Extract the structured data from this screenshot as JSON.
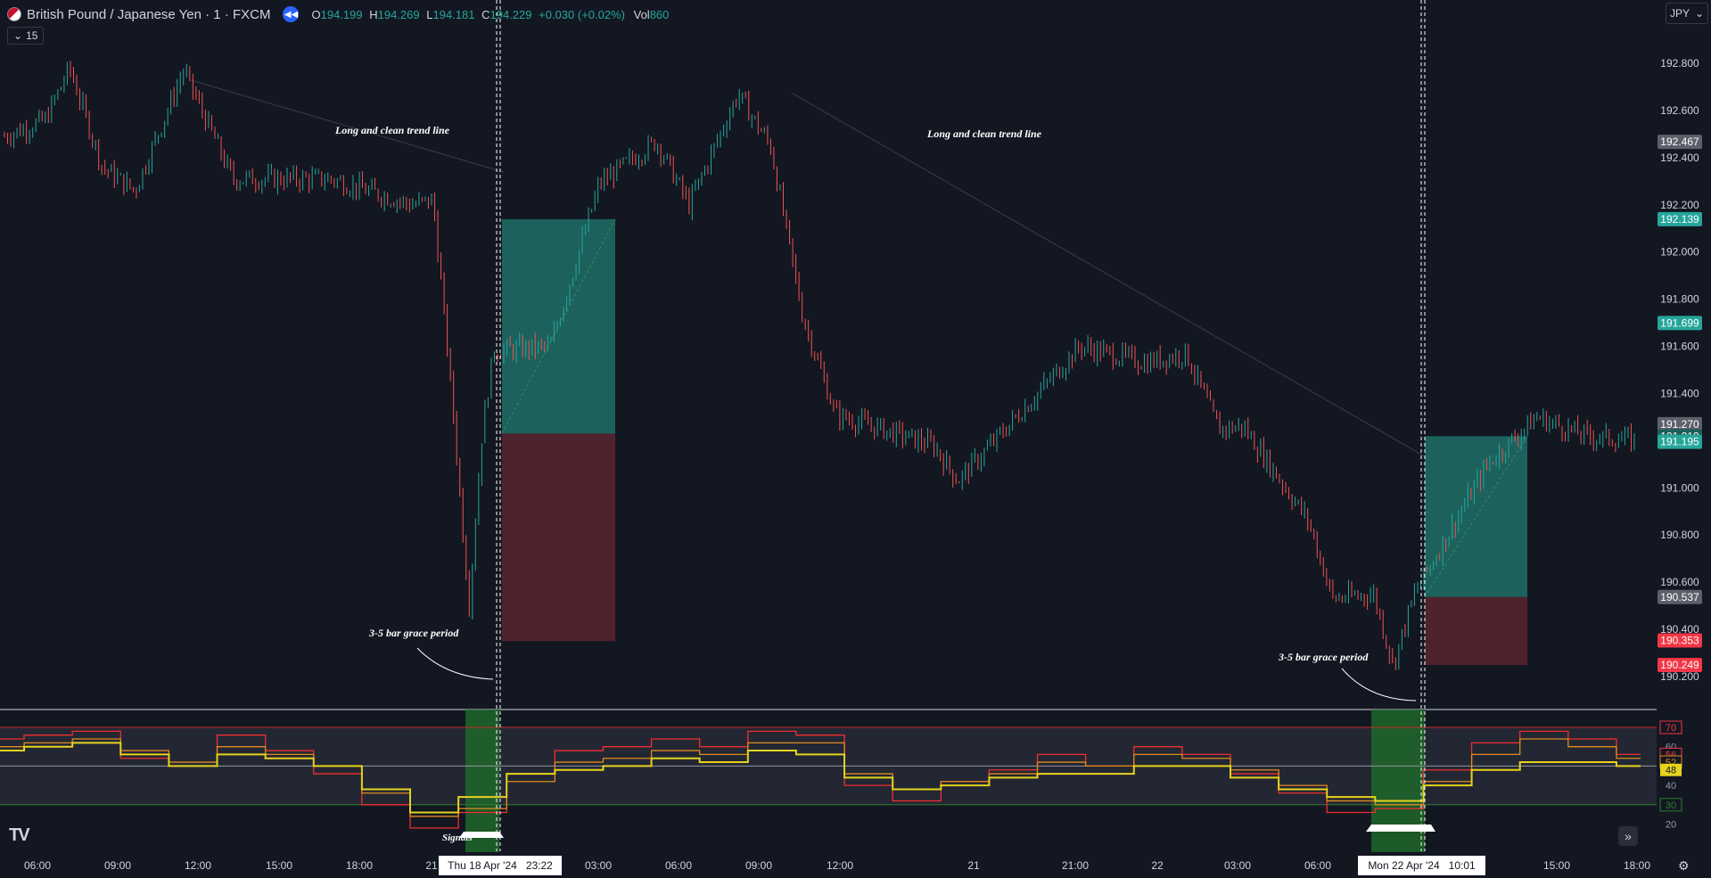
{
  "header": {
    "title": "British Pound / Japanese Yen · 1 · FXCM",
    "open_label": "O",
    "open": "194.199",
    "high_label": "H",
    "high": "194.269",
    "low_label": "L",
    "low": "194.181",
    "close_label": "C",
    "close": "194.229",
    "change": "+0.030 (+0.02%)",
    "vol_label": "Vol",
    "vol": "860",
    "timeframe": "15",
    "currency": "JPY"
  },
  "icons": {
    "flag": "gbp-jpy-flag-icon",
    "replay": "replay-rewind-icon",
    "chevron": "chevron-down-icon",
    "logo": "tradingview-logo-icon",
    "scroll": "scroll-to-realtime-icon",
    "settings": "settings-icon"
  },
  "colors": {
    "background": "#131722",
    "bull": "#26a69a",
    "bear": "#ef5350",
    "tp_zone": "#1e6e66",
    "sl_zone": "#5b2630",
    "rsi_fast": "#ef2f2f",
    "rsi_mid": "#e08a1e",
    "rsi_slow": "#e6d31d"
  },
  "annotations": {
    "trend1": "Long and clean trend line",
    "trend2": "Long and clean trend line",
    "grace1": "3-5 bar grace period",
    "grace2": "3-5 bar grace period",
    "signals": "Signals"
  },
  "price_axis": {
    "ticks": [
      "192.800",
      "192.600",
      "192.400",
      "192.200",
      "192.000",
      "191.800",
      "191.600",
      "191.400",
      "191.200",
      "191.000",
      "190.800",
      "190.600",
      "190.400",
      "190.200"
    ],
    "tags": [
      {
        "value": "192.467",
        "type": "gray"
      },
      {
        "value": "192.139",
        "type": "green"
      },
      {
        "value": "191.699",
        "type": "green"
      },
      {
        "value": "191.270",
        "type": "gray"
      },
      {
        "value": "191.219",
        "type": "dark"
      },
      {
        "value": "191.195",
        "type": "green"
      },
      {
        "value": "190.537",
        "type": "gray"
      },
      {
        "value": "190.353",
        "type": "red"
      },
      {
        "value": "190.249",
        "type": "red"
      }
    ]
  },
  "indicator_axis": {
    "ticks": [
      "60",
      "50",
      "40",
      "20"
    ],
    "tags": [
      {
        "value": "70",
        "type": "red-outline"
      },
      {
        "value": "56",
        "type": "red-outline"
      },
      {
        "value": "52",
        "type": "orange-outline"
      },
      {
        "value": "48",
        "type": "yellow"
      },
      {
        "value": "30",
        "type": "green-outline"
      }
    ]
  },
  "time_axis": {
    "labels": [
      "06:00",
      "09:00",
      "12:00",
      "15:00",
      "18:00",
      "21",
      "03:00",
      "06:00",
      "09:00",
      "12:00",
      "21",
      "21:00",
      "22",
      "03:00",
      "06:00",
      "0",
      "15:00",
      "18:00"
    ],
    "crosshair1": "Thu 18 Apr '24   23:22",
    "crosshair2": "Mon 22 Apr '24   10:01"
  },
  "chart_data": {
    "type": "candlestick",
    "symbol": "GBP/JPY",
    "interval": "1",
    "ylim": [
      190.2,
      192.8
    ],
    "anchors": [
      {
        "t": 0,
        "p": 192.49
      },
      {
        "t": 0.025,
        "p": 192.56
      },
      {
        "t": 0.04,
        "p": 192.78
      },
      {
        "t": 0.06,
        "p": 192.36
      },
      {
        "t": 0.08,
        "p": 192.26
      },
      {
        "t": 0.11,
        "p": 192.77
      },
      {
        "t": 0.14,
        "p": 192.31
      },
      {
        "t": 0.2,
        "p": 192.31
      },
      {
        "t": 0.25,
        "p": 192.2
      },
      {
        "t": 0.263,
        "p": 192.22
      },
      {
        "t": 0.275,
        "p": 191.35
      },
      {
        "t": 0.285,
        "p": 190.5
      },
      {
        "t": 0.293,
        "p": 191.23
      },
      {
        "t": 0.3,
        "p": 191.58
      },
      {
        "t": 0.335,
        "p": 191.6
      },
      {
        "t": 0.365,
        "p": 192.29
      },
      {
        "t": 0.4,
        "p": 192.47
      },
      {
        "t": 0.42,
        "p": 192.2
      },
      {
        "t": 0.45,
        "p": 192.67
      },
      {
        "t": 0.47,
        "p": 192.45
      },
      {
        "t": 0.49,
        "p": 191.72
      },
      {
        "t": 0.51,
        "p": 191.31
      },
      {
        "t": 0.57,
        "p": 191.18
      },
      {
        "t": 0.585,
        "p": 191.03
      },
      {
        "t": 0.63,
        "p": 191.37
      },
      {
        "t": 0.66,
        "p": 191.6
      },
      {
        "t": 0.7,
        "p": 191.53
      },
      {
        "t": 0.725,
        "p": 191.57
      },
      {
        "t": 0.745,
        "p": 191.25
      },
      {
        "t": 0.76,
        "p": 191.26
      },
      {
        "t": 0.8,
        "p": 190.86
      },
      {
        "t": 0.815,
        "p": 190.53
      },
      {
        "t": 0.84,
        "p": 190.55
      },
      {
        "t": 0.852,
        "p": 190.25
      },
      {
        "t": 0.865,
        "p": 190.55
      },
      {
        "t": 0.91,
        "p": 191.1
      },
      {
        "t": 0.94,
        "p": 191.3
      },
      {
        "t": 0.97,
        "p": 191.22
      },
      {
        "t": 1.0,
        "p": 191.2
      }
    ],
    "positions": [
      {
        "entry": 191.23,
        "target": 192.139,
        "stop": 190.35
      },
      {
        "entry": 190.537,
        "target": 191.219,
        "stop": 190.249
      }
    ],
    "trendlines": [
      {
        "p1": 192.78,
        "p2": 192.15
      },
      {
        "p1": 192.67,
        "p2": 190.92
      }
    ],
    "rsi_levels": [
      70,
      50,
      30
    ],
    "rsi_series": [
      {
        "values": [
          64,
          66,
          68,
          54,
          50,
          66,
          58,
          46,
          30,
          18,
          26,
          46,
          58,
          60,
          64,
          60,
          68,
          66,
          40,
          32,
          42,
          48,
          56,
          50,
          60,
          56,
          46,
          36,
          26,
          28,
          48,
          62,
          68,
          64,
          56
        ]
      },
      {
        "values": [
          60,
          62,
          64,
          58,
          52,
          60,
          56,
          50,
          36,
          24,
          28,
          42,
          52,
          54,
          58,
          56,
          62,
          62,
          46,
          38,
          42,
          46,
          52,
          50,
          56,
          54,
          48,
          40,
          32,
          30,
          42,
          56,
          64,
          60,
          54
        ]
      },
      {
        "values": [
          58,
          60,
          62,
          56,
          50,
          56,
          54,
          50,
          38,
          26,
          34,
          46,
          48,
          50,
          54,
          52,
          58,
          56,
          44,
          38,
          40,
          44,
          46,
          46,
          50,
          50,
          44,
          38,
          34,
          32,
          40,
          48,
          52,
          52,
          50
        ]
      }
    ]
  }
}
